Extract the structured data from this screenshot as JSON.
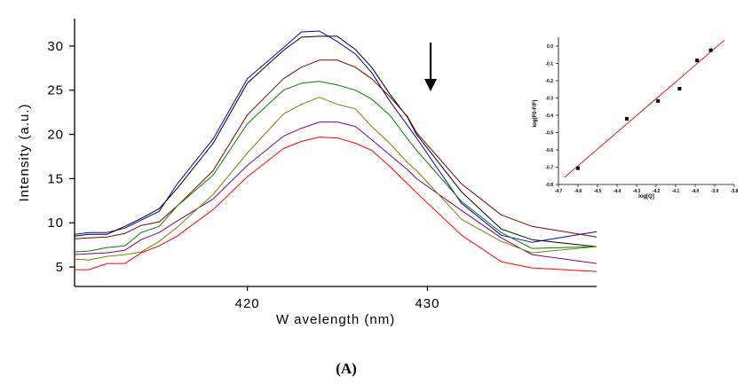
{
  "chart_data": [
    {
      "type": "line",
      "title": "",
      "xlabel": "W avelength (nm)",
      "ylabel": "Intensity (a.u.)",
      "xlim": [
        410.4,
        439.4
      ],
      "ylim": [
        2.8,
        33.1
      ],
      "xticks": [
        420,
        430
      ],
      "yticks": [
        5,
        10,
        15,
        20,
        25,
        30
      ],
      "grid": false,
      "legend": "none",
      "annotation": {
        "type": "arrow",
        "direction": "down",
        "x": 430.2,
        "y_from": 30.4,
        "y_to": 25.0,
        "meaning": "decreasing intensity"
      },
      "x": [
        410.4,
        411.2,
        412.2,
        413.2,
        414.1,
        415.1,
        416.1,
        418.1,
        420.0,
        422.0,
        423.0,
        424.0,
        425.0,
        426.0,
        426.9,
        427.9,
        428.9,
        429.4,
        431.9,
        434.1,
        435.8,
        439.4
      ],
      "series": [
        {
          "name": "blue",
          "color": "#0000cc",
          "values": [
            8.7,
            8.9,
            8.9,
            9.4,
            10.3,
            11.3,
            14.4,
            19.5,
            26.3,
            29.8,
            31.6,
            31.7,
            30.5,
            29.1,
            27.0,
            23.8,
            21.0,
            19.6,
            12.2,
            8.6,
            7.8,
            9.0
          ]
        },
        {
          "name": "black",
          "color": "#000000",
          "values": [
            8.5,
            8.7,
            8.7,
            9.6,
            10.5,
            11.6,
            13.9,
            19.0,
            25.8,
            29.5,
            31.0,
            31.1,
            31.1,
            29.6,
            27.6,
            24.6,
            21.9,
            20.0,
            13.5,
            9.3,
            8.1,
            7.3
          ]
        },
        {
          "name": "brown",
          "color": "#800000",
          "values": [
            8.2,
            8.3,
            8.4,
            8.8,
            9.7,
            10.1,
            11.9,
            15.9,
            22.2,
            26.3,
            27.6,
            28.4,
            28.4,
            27.6,
            26.3,
            24.3,
            22.0,
            20.2,
            14.4,
            10.9,
            9.6,
            8.4
          ]
        },
        {
          "name": "green",
          "color": "#008000",
          "values": [
            6.7,
            6.8,
            7.2,
            7.4,
            8.9,
            9.6,
            11.9,
            15.4,
            21.2,
            25.0,
            25.8,
            26.0,
            25.6,
            25.0,
            24.0,
            22.2,
            19.5,
            18.2,
            12.4,
            8.9,
            7.1,
            7.3
          ]
        },
        {
          "name": "purple",
          "color": "#800080",
          "values": [
            6.4,
            6.5,
            6.6,
            6.9,
            8.1,
            8.9,
            10.2,
            12.7,
            16.5,
            19.8,
            20.7,
            21.4,
            21.4,
            20.9,
            19.4,
            17.7,
            16.0,
            15.0,
            11.4,
            8.3,
            6.4,
            5.4
          ]
        },
        {
          "name": "olive",
          "color": "#808000",
          "values": [
            5.9,
            5.8,
            6.2,
            6.4,
            6.7,
            7.9,
            9.5,
            13.2,
            17.9,
            22.3,
            23.4,
            24.2,
            23.4,
            22.9,
            20.9,
            19.0,
            16.8,
            15.9,
            10.4,
            7.9,
            6.6,
            7.3
          ]
        },
        {
          "name": "red",
          "color": "#ff0000",
          "values": [
            4.7,
            4.7,
            5.4,
            5.4,
            6.6,
            7.4,
            8.5,
            11.5,
            15.2,
            18.4,
            19.2,
            19.7,
            19.6,
            19.0,
            18.2,
            16.4,
            14.4,
            13.4,
            8.6,
            5.6,
            4.9,
            4.5
          ]
        }
      ]
    },
    {
      "type": "scatter",
      "title": "",
      "xlabel": "log[Q]",
      "ylabel": "log(F0-F/F)",
      "xlim": [
        -4.7,
        -3.8
      ],
      "ylim": [
        -0.8,
        0.05
      ],
      "xticks": [
        -4.7,
        -4.6,
        -4.5,
        -4.4,
        -4.3,
        -4.2,
        -4.1,
        -4.0,
        -3.9,
        -3.8
      ],
      "xtick_labels": [
        "-4.7",
        "-4.6",
        "-4.5",
        "-4.4",
        "-4.3",
        "-4.2",
        "-4.1",
        "-4.0",
        "-3.9",
        "-3.8"
      ],
      "yticks": [
        0.0,
        -0.1,
        -0.2,
        -0.3,
        -0.4,
        -0.5,
        -0.6,
        -0.7,
        -0.8
      ],
      "ytick_labels": [
        "0.0",
        "-0.1",
        "-0.2",
        "-0.3",
        "-0.4",
        "-0.5",
        "-0.6",
        "-0.7",
        "-0.8"
      ],
      "grid": false,
      "points": [
        {
          "x": -4.6,
          "y": -0.706
        },
        {
          "x": -4.35,
          "y": -0.42
        },
        {
          "x": -4.19,
          "y": -0.317
        },
        {
          "x": -4.08,
          "y": -0.246
        },
        {
          "x": -3.99,
          "y": -0.083
        },
        {
          "x": -3.92,
          "y": -0.024
        }
      ],
      "fit_line": {
        "color": "#dd0000",
        "x": [
          -4.67,
          -3.85
        ],
        "y": [
          -0.76,
          0.035
        ]
      }
    }
  ],
  "caption": "(A)"
}
